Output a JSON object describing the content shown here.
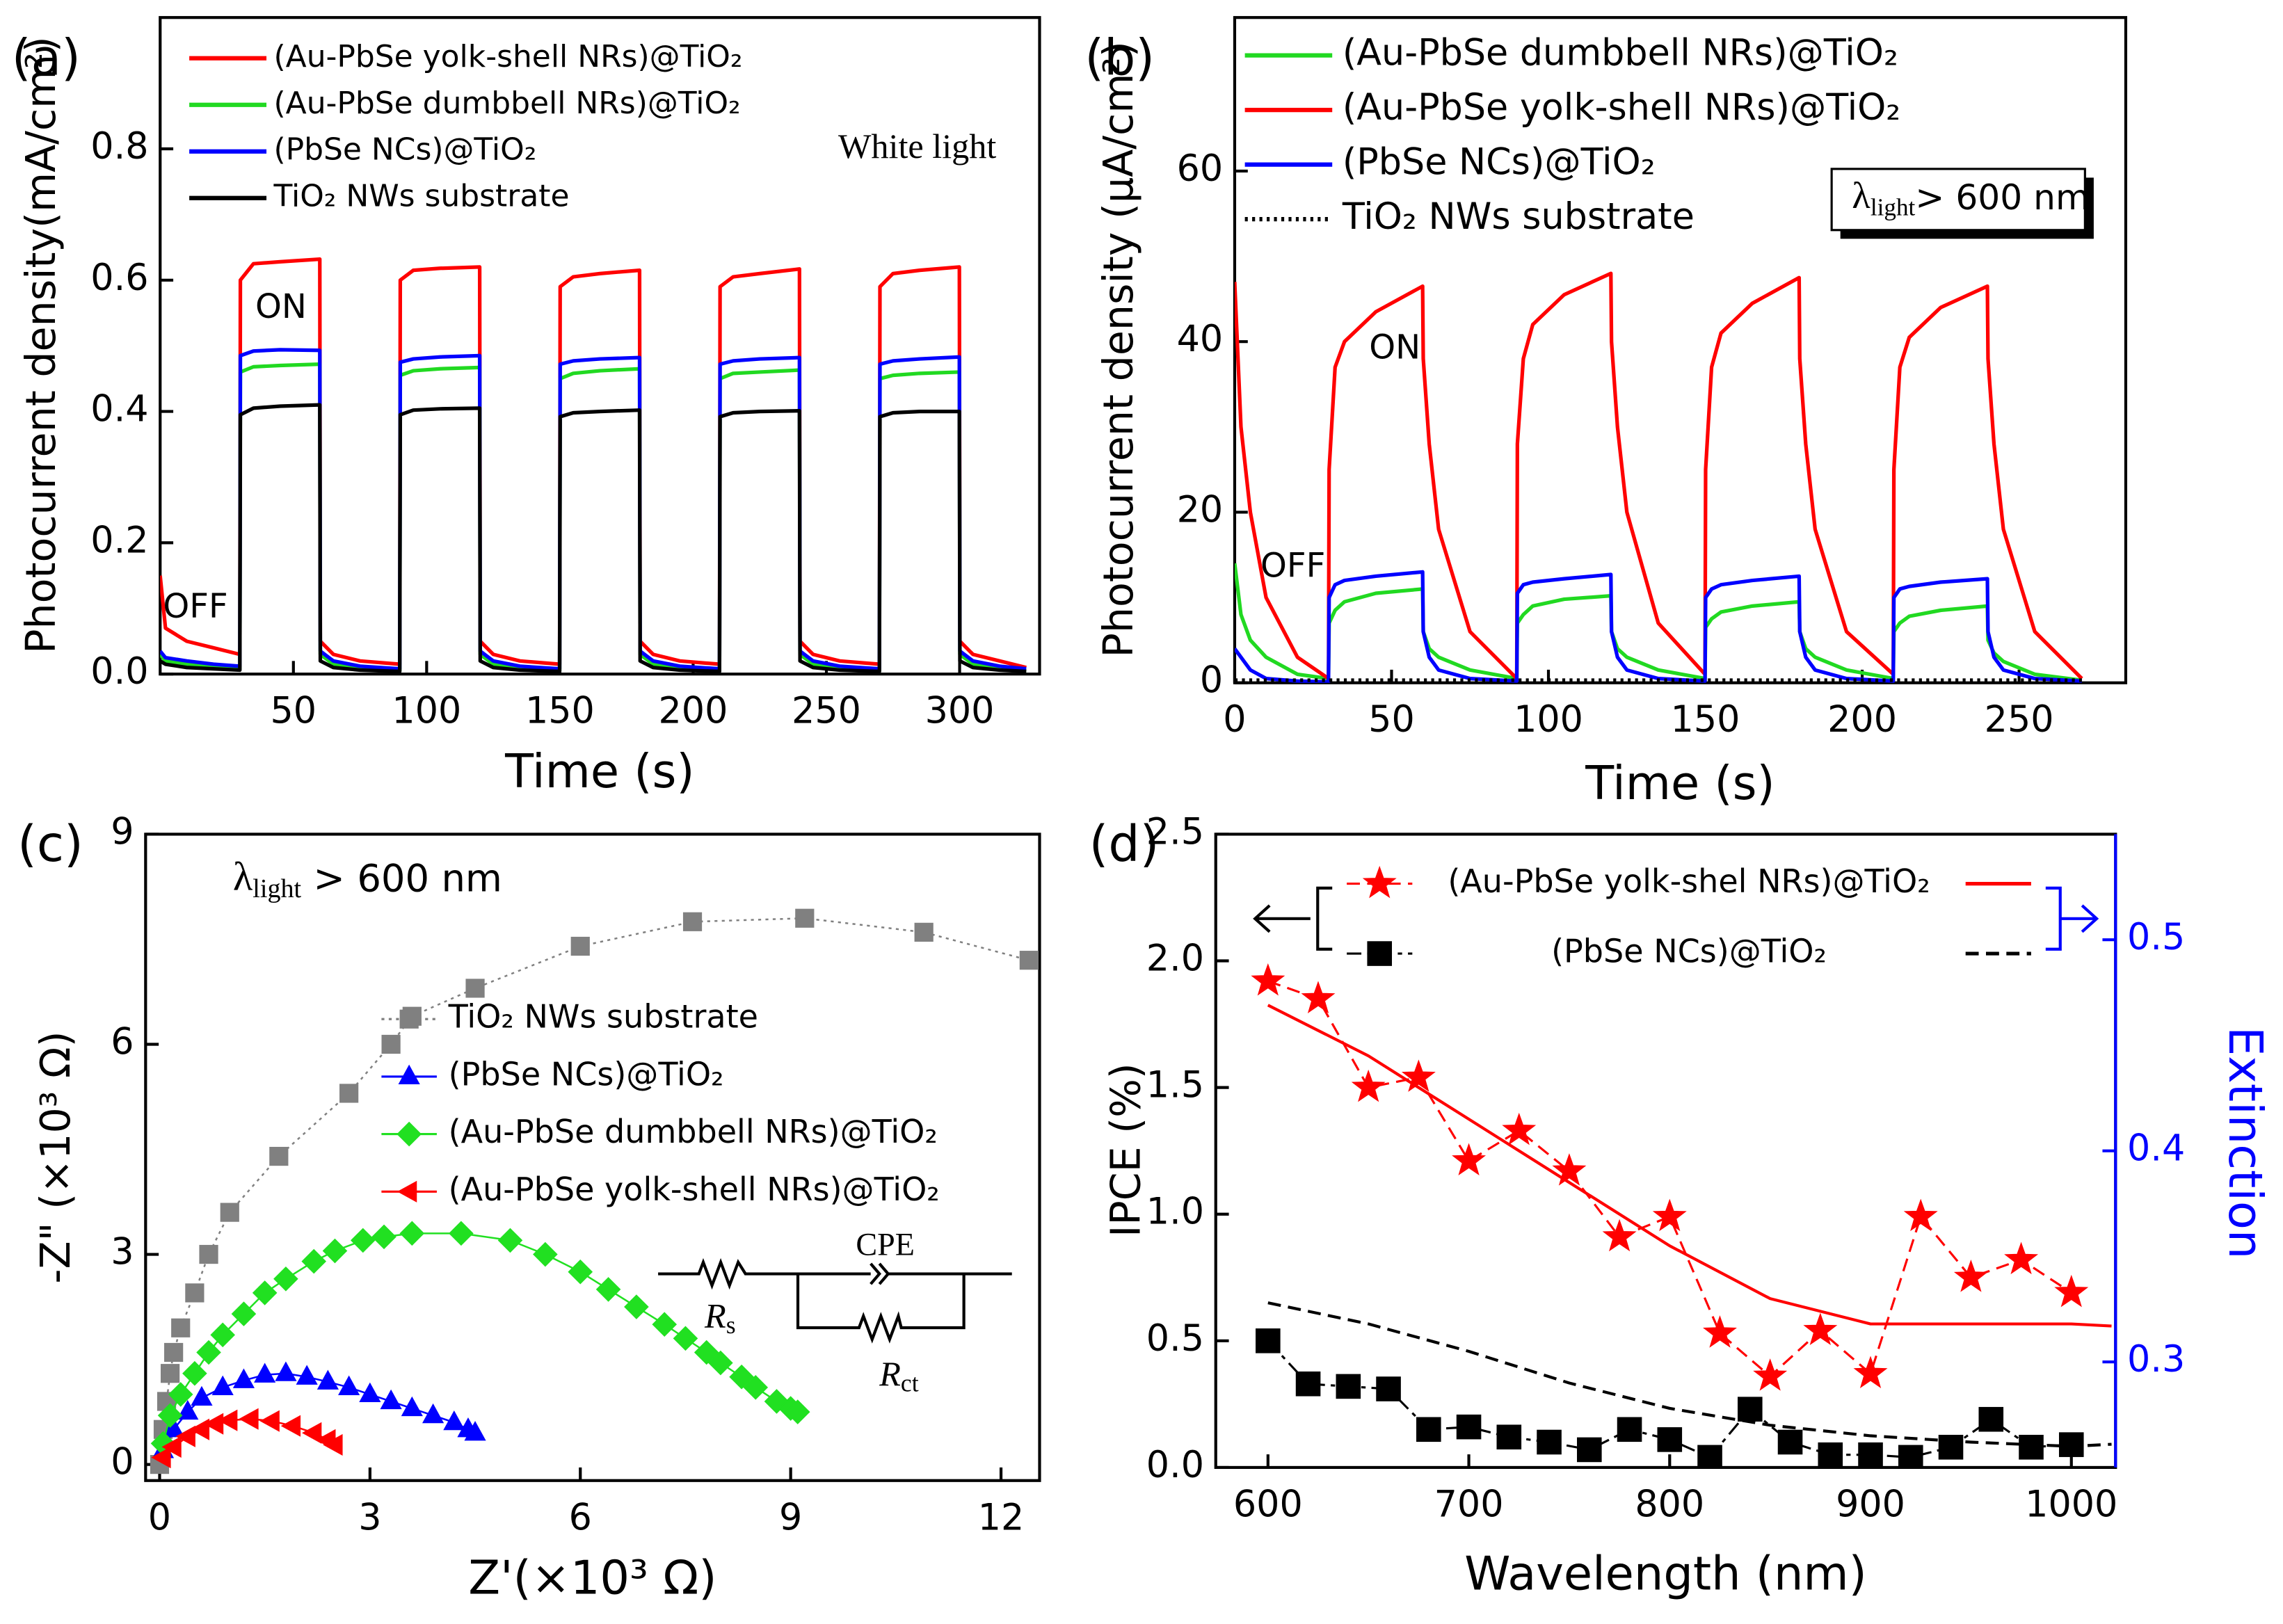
{
  "chart_data": [
    {
      "type": "line",
      "panel": "(a)",
      "xlabel": "Time (s)",
      "ylabel": "Photocurrent density(mA/cm²)",
      "xlim": [
        0,
        330
      ],
      "xticks": [
        50,
        100,
        150,
        200,
        250,
        300
      ],
      "ylim": [
        0,
        1.0
      ],
      "yticks": [
        {
          "value": 0,
          "label": "0.0"
        },
        0.2,
        0.4,
        0.6,
        0.8
      ],
      "annotations": [
        "ON",
        "OFF",
        "White light"
      ],
      "x": [
        0,
        2,
        10,
        20,
        29.9,
        30.1,
        35,
        45,
        59.9,
        60.1,
        65,
        75,
        89.9,
        90.1,
        95,
        105,
        119.9,
        120.1,
        125,
        135,
        149.9,
        150.1,
        155,
        165,
        179.9,
        180.1,
        185,
        195,
        209.9,
        210.1,
        215,
        225,
        239.9,
        240.1,
        245,
        255,
        269.9,
        270.1,
        275,
        285,
        299.9,
        300.1,
        305,
        315,
        325
      ],
      "series": [
        {
          "name": "(Au-PbSe yolk-shell NRs)@TiO₂",
          "color": "#ff0000",
          "values": [
            0.15,
            0.07,
            0.05,
            0.04,
            0.03,
            0.6,
            0.625,
            0.628,
            0.632,
            0.05,
            0.03,
            0.02,
            0.015,
            0.6,
            0.615,
            0.618,
            0.62,
            0.05,
            0.03,
            0.02,
            0.015,
            0.59,
            0.605,
            0.61,
            0.615,
            0.05,
            0.03,
            0.02,
            0.015,
            0.59,
            0.605,
            0.61,
            0.617,
            0.05,
            0.03,
            0.02,
            0.015,
            0.59,
            0.61,
            0.615,
            0.62,
            0.05,
            0.03,
            0.02,
            0.01
          ]
        },
        {
          "name": "(Au-PbSe dumbbell NRs)@TiO₂",
          "color": "#21d921",
          "values": [
            0.03,
            0.02,
            0.015,
            0.01,
            0.008,
            0.46,
            0.468,
            0.47,
            0.472,
            0.03,
            0.015,
            0.008,
            0.005,
            0.455,
            0.462,
            0.465,
            0.467,
            0.03,
            0.015,
            0.008,
            0.005,
            0.45,
            0.458,
            0.462,
            0.465,
            0.03,
            0.015,
            0.008,
            0.005,
            0.45,
            0.458,
            0.46,
            0.463,
            0.03,
            0.015,
            0.008,
            0.005,
            0.45,
            0.455,
            0.458,
            0.46,
            0.03,
            0.015,
            0.008,
            0.005
          ]
        },
        {
          "name": "(PbSe NCs)@TiO₂",
          "color": "#0000ff",
          "values": [
            0.035,
            0.025,
            0.02,
            0.015,
            0.012,
            0.485,
            0.492,
            0.494,
            0.493,
            0.035,
            0.02,
            0.012,
            0.008,
            0.475,
            0.48,
            0.483,
            0.485,
            0.035,
            0.02,
            0.012,
            0.008,
            0.472,
            0.477,
            0.48,
            0.482,
            0.035,
            0.02,
            0.012,
            0.008,
            0.472,
            0.477,
            0.48,
            0.482,
            0.035,
            0.02,
            0.012,
            0.008,
            0.472,
            0.477,
            0.48,
            0.483,
            0.035,
            0.02,
            0.012,
            0.008
          ]
        },
        {
          "name": "TiO₂ NWs substrate",
          "color": "#000000",
          "values": [
            0.02,
            0.015,
            0.01,
            0.008,
            0.006,
            0.395,
            0.405,
            0.408,
            0.41,
            0.02,
            0.01,
            0.006,
            0.004,
            0.395,
            0.402,
            0.404,
            0.405,
            0.02,
            0.01,
            0.006,
            0.004,
            0.392,
            0.398,
            0.4,
            0.402,
            0.02,
            0.01,
            0.006,
            0.004,
            0.392,
            0.398,
            0.4,
            0.401,
            0.02,
            0.01,
            0.006,
            0.004,
            0.392,
            0.398,
            0.4,
            0.4,
            0.02,
            0.01,
            0.006,
            0.004
          ]
        }
      ]
    },
    {
      "type": "line",
      "panel": "(b)",
      "xlabel": "Time (s)",
      "ylabel": "Photocurrent density (μA/cm²)",
      "xlim": [
        0,
        284
      ],
      "xticks": [
        0,
        50,
        100,
        150,
        200,
        250
      ],
      "ylim": [
        0,
        78
      ],
      "yticks": [
        0,
        20,
        40,
        60
      ],
      "annotations": [
        "ON",
        "OFF"
      ],
      "condition": {
        "symbol": "λ",
        "sub": "light",
        "rest": "> 600 nm"
      },
      "x": [
        0,
        2,
        5,
        10,
        20,
        29.9,
        30.1,
        32,
        35,
        45,
        59.9,
        60.1,
        62,
        65,
        75,
        89.9,
        90.1,
        92,
        95,
        105,
        119.9,
        120.1,
        122,
        125,
        135,
        149.9,
        150.1,
        152,
        155,
        165,
        179.9,
        180.1,
        182,
        185,
        195,
        209.9,
        210.1,
        212,
        215,
        225,
        239.9,
        240.1,
        242,
        245,
        255,
        270
      ],
      "series": [
        {
          "name": "(Au-PbSe dumbbell NRs)@TiO₂",
          "color": "#21d921",
          "values": [
            14,
            8,
            5,
            3,
            1,
            0.5,
            7,
            8.5,
            9.5,
            10.5,
            11,
            6,
            4,
            3,
            1.5,
            0.5,
            7,
            8,
            9,
            9.8,
            10.2,
            6,
            4,
            3,
            1.5,
            0.5,
            6.5,
            7.5,
            8.3,
            9,
            9.5,
            6,
            4,
            3,
            1.5,
            0.5,
            6,
            7,
            7.8,
            8.5,
            9,
            5,
            3.5,
            2.5,
            1,
            0.3
          ]
        },
        {
          "name": "(Au-PbSe yolk-shell NRs)@TiO₂",
          "color": "#ff0000",
          "values": [
            47,
            30,
            20,
            10,
            3,
            0.5,
            25,
            37,
            40,
            43.5,
            46.5,
            38,
            28,
            18,
            6,
            0.5,
            28,
            38,
            42,
            45.5,
            48,
            40,
            30,
            20,
            7,
            1,
            25,
            37,
            41,
            44.5,
            47.5,
            38,
            28,
            18,
            6,
            1,
            25,
            37,
            40.5,
            44,
            46.5,
            38,
            28,
            18,
            6,
            0.5
          ]
        },
        {
          "name": "(PbSe NCs)@TiO₂",
          "color": "#0000ff",
          "values": [
            4,
            3,
            1.5,
            0.5,
            0.2,
            0.1,
            10,
            11.5,
            12,
            12.5,
            13,
            6,
            3,
            1.5,
            0.5,
            0.2,
            10.5,
            11.5,
            11.8,
            12.2,
            12.7,
            6,
            3,
            1.5,
            0.5,
            0.2,
            10,
            11,
            11.5,
            12,
            12.5,
            6,
            3,
            1.5,
            0.5,
            0.2,
            10,
            11,
            11.3,
            11.8,
            12.2,
            6,
            3,
            1.5,
            0.5,
            0.2
          ]
        },
        {
          "name": "TiO₂ NWs substrate",
          "color": "#000000",
          "line": "dot",
          "values": [
            0.3,
            0.3,
            0.3,
            0.3,
            0.3,
            0.3,
            0.3,
            0.3,
            0.3,
            0.3,
            0.3,
            0.3,
            0.3,
            0.3,
            0.3,
            0.3,
            0.3,
            0.3,
            0.3,
            0.3,
            0.3,
            0.3,
            0.3,
            0.3,
            0.3,
            0.3,
            0.3,
            0.3,
            0.3,
            0.3,
            0.3,
            0.3,
            0.3,
            0.3,
            0.3,
            0.3,
            0.3,
            0.3,
            0.3,
            0.3,
            0.3,
            0.3,
            0.3,
            0.3,
            0.3,
            0.3
          ]
        }
      ]
    },
    {
      "type": "scatter",
      "panel": "(c)",
      "xlabel": "Z'(×10³ Ω)",
      "ylabel": "-Z\" (×10³ Ω)",
      "xlim": [
        -0.2,
        12.55
      ],
      "xticks": [
        0,
        3,
        6,
        9,
        12
      ],
      "ylim": [
        -0.23,
        9
      ],
      "yticks": [
        0,
        3,
        6,
        9
      ],
      "condition": {
        "symbol": "λ",
        "sub": "light",
        "rest": " > 600 nm"
      },
      "circuit": {
        "element": "CPE",
        "rs": {
          "main": "R",
          "sub": "s"
        },
        "rct": {
          "main": "R",
          "sub": "ct"
        }
      },
      "series": [
        {
          "name": "TiO₂ NWs substrate",
          "color": "#808080",
          "marker": "square",
          "line": "dot",
          "x": [
            0,
            0.05,
            0.1,
            0.15,
            0.2,
            0.3,
            0.5,
            0.7,
            1.0,
            1.7,
            2.7,
            3.3,
            3.6,
            4.5,
            6.0,
            7.6,
            9.2,
            10.9,
            12.4
          ],
          "values": [
            0,
            0.5,
            0.9,
            1.3,
            1.6,
            1.95,
            2.45,
            3.0,
            3.6,
            4.4,
            5.3,
            6.0,
            6.4,
            6.8,
            7.4,
            7.75,
            7.8,
            7.6,
            7.2
          ]
        },
        {
          "name": "(PbSe NCs)@TiO₂",
          "color": "#0000ff",
          "marker": "triangle-up",
          "line": "solid",
          "x": [
            0.05,
            0.2,
            0.4,
            0.6,
            0.9,
            1.2,
            1.5,
            1.8,
            2.1,
            2.4,
            2.7,
            3.0,
            3.3,
            3.6,
            3.9,
            4.2,
            4.4,
            4.5
          ],
          "values": [
            0.2,
            0.5,
            0.75,
            0.95,
            1.1,
            1.2,
            1.28,
            1.3,
            1.25,
            1.18,
            1.1,
            1.0,
            0.9,
            0.8,
            0.7,
            0.6,
            0.5,
            0.45
          ]
        },
        {
          "name": "(Au-PbSe dumbbell NRs)@TiO₂",
          "color": "#21e021",
          "marker": "diamond",
          "line": "solid",
          "x": [
            0.05,
            0.15,
            0.3,
            0.5,
            0.7,
            0.9,
            1.2,
            1.5,
            1.8,
            2.2,
            2.5,
            2.9,
            3.2,
            3.6,
            4.3,
            5.0,
            5.5,
            6.0,
            6.4,
            6.8,
            7.2,
            7.5,
            7.8,
            8.0,
            8.3,
            8.5,
            8.8,
            9.0,
            9.1
          ],
          "values": [
            0.3,
            0.7,
            1.0,
            1.3,
            1.6,
            1.85,
            2.15,
            2.45,
            2.65,
            2.9,
            3.05,
            3.2,
            3.25,
            3.3,
            3.3,
            3.2,
            3.0,
            2.75,
            2.5,
            2.25,
            2.0,
            1.8,
            1.6,
            1.45,
            1.25,
            1.1,
            0.9,
            0.8,
            0.75
          ]
        },
        {
          "name": "(Au-PbSe yolk-shell NRs)@TiO₂",
          "color": "#ff0000",
          "marker": "triangle-left",
          "line": "solid",
          "x": [
            0.05,
            0.2,
            0.4,
            0.6,
            0.8,
            1.0,
            1.3,
            1.6,
            1.9,
            2.2,
            2.4,
            2.5
          ],
          "values": [
            0.1,
            0.25,
            0.4,
            0.5,
            0.58,
            0.63,
            0.65,
            0.62,
            0.55,
            0.45,
            0.35,
            0.28
          ]
        }
      ]
    },
    {
      "type": "line",
      "panel": "(d)",
      "xlabel": "Wavelength (nm)",
      "ylabel": "IPCE (%)",
      "y2label": "Extinction",
      "y2color": "#0000ff",
      "xlim": [
        574,
        1022
      ],
      "xticks": [
        600,
        700,
        800,
        900,
        1000
      ],
      "ylim": [
        0,
        2.5
      ],
      "yticks": [
        {
          "value": 0,
          "label": "0.0"
        },
        0.5,
        {
          "value": 1,
          "label": "1.0"
        },
        1.5,
        {
          "value": 2,
          "label": "2.0"
        },
        2.5
      ],
      "y2lim": [
        0.25,
        0.55
      ],
      "y2ticks": [
        0.3,
        0.4,
        0.5
      ],
      "series": [
        {
          "name": "(Au-PbSe yolk-shel NRs)@TiO₂",
          "color": "#ff0000",
          "marker": "star",
          "line": "dash",
          "x": [
            600,
            625,
            650,
            675,
            700,
            725,
            750,
            775,
            800,
            825,
            850,
            875,
            900,
            925,
            950,
            975,
            1000
          ],
          "values": [
            1.92,
            1.85,
            1.5,
            1.54,
            1.21,
            1.33,
            1.17,
            0.91,
            0.99,
            0.53,
            0.36,
            0.54,
            0.37,
            0.99,
            0.75,
            0.82,
            0.69
          ]
        },
        {
          "name": "(PbSe NCs)@TiO₂",
          "color": "#000000",
          "marker": "square",
          "line": "dashdot",
          "x": [
            600,
            620,
            640,
            660,
            680,
            700,
            720,
            740,
            760,
            780,
            800,
            820,
            840,
            860,
            880,
            900,
            920,
            940,
            960,
            980,
            1000
          ],
          "values": [
            0.5,
            0.33,
            0.32,
            0.31,
            0.15,
            0.16,
            0.12,
            0.1,
            0.07,
            0.15,
            0.11,
            0.04,
            0.23,
            0.1,
            0.05,
            0.05,
            0.04,
            0.08,
            0.19,
            0.08,
            0.09
          ]
        },
        {
          "axis": "y2",
          "color": "#ff0000",
          "line": "solid",
          "x": [
            600,
            650,
            700,
            750,
            800,
            850,
            900,
            950,
            1000,
            1020
          ],
          "values": [
            0.469,
            0.445,
            0.415,
            0.385,
            0.355,
            0.33,
            0.318,
            0.318,
            0.318,
            0.317
          ]
        },
        {
          "axis": "y2",
          "color": "#000000",
          "line": "dash",
          "x": [
            600,
            650,
            700,
            750,
            800,
            850,
            900,
            950,
            1000,
            1020
          ],
          "values": [
            0.328,
            0.318,
            0.305,
            0.29,
            0.278,
            0.27,
            0.265,
            0.262,
            0.26,
            0.261
          ]
        }
      ]
    }
  ]
}
